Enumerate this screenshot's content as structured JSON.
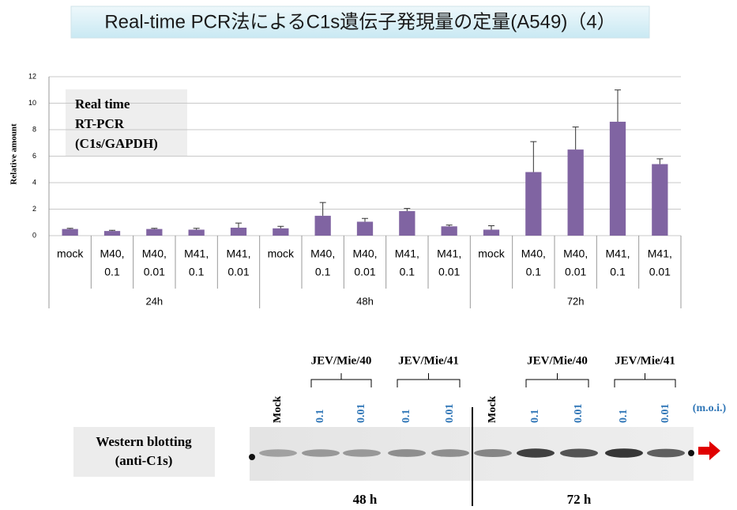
{
  "title": "Real-time PCR法によるC1s遺伝子発現量の定量(A549)（4）",
  "chart_data": {
    "type": "bar",
    "y_label": "Relative amount",
    "annotation": [
      "Real time",
      "RT-PCR",
      "(C1s/GAPDH)"
    ],
    "categories": [
      [
        "mock"
      ],
      [
        "M40,",
        "0.1"
      ],
      [
        "M40,",
        "0.01"
      ],
      [
        "M41,",
        "0.1"
      ],
      [
        "M41,",
        "0.01"
      ],
      [
        "mock"
      ],
      [
        "M40,",
        "0.1"
      ],
      [
        "M40,",
        "0.01"
      ],
      [
        "M41,",
        "0.1"
      ],
      [
        "M41,",
        "0.01"
      ],
      [
        "mock"
      ],
      [
        "M40,",
        "0.1"
      ],
      [
        "M40,",
        "0.01"
      ],
      [
        "M41,",
        "0.1"
      ],
      [
        "M41,",
        "0.01"
      ]
    ],
    "groups": [
      "24h",
      "48h",
      "72h"
    ],
    "values": [
      0.5,
      0.35,
      0.5,
      0.45,
      0.6,
      0.55,
      1.5,
      1.05,
      1.85,
      0.7,
      0.45,
      4.8,
      6.5,
      8.6,
      5.4
    ],
    "errors": [
      0.05,
      0.05,
      0.05,
      0.1,
      0.35,
      0.15,
      1.0,
      0.25,
      0.2,
      0.1,
      0.3,
      2.3,
      1.7,
      2.4,
      0.4
    ],
    "color": "#8064a2",
    "ylim": [
      0,
      12
    ],
    "yticks": [
      0,
      2,
      4,
      6,
      8,
      10,
      12
    ],
    "grid": true
  },
  "western_blot": {
    "label": [
      "Western blotting",
      "(anti-C1s)"
    ],
    "group_labels": [
      "JEV/Mie/40",
      "JEV/Mie/41",
      "JEV/Mie/40",
      "JEV/Mie/41"
    ],
    "lanes": [
      "Mock",
      "0.1",
      "0.01",
      "0.1",
      "0.01",
      "Mock",
      "0.1",
      "0.01",
      "0.1",
      "0.01"
    ],
    "moi": "(m.o.i.)",
    "time_labels": [
      "48 h",
      "72 h"
    ]
  }
}
